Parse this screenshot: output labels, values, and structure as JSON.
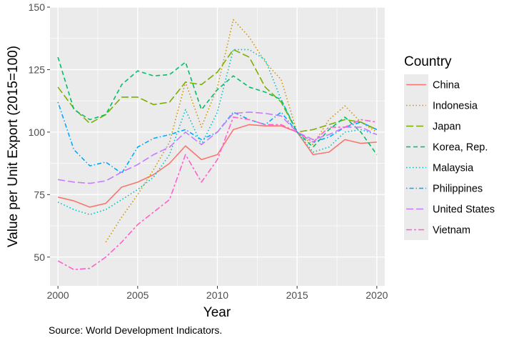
{
  "chart_data": {
    "type": "line",
    "xlabel": "Year",
    "ylabel": "Value per Unit Export (2015=100)",
    "caption": "Source: World Development Indicators.",
    "legend_title": "Country",
    "legend_position": "right",
    "grid": true,
    "xlim": [
      1999.5,
      2020.5
    ],
    "ylim": [
      38.5,
      150
    ],
    "x_ticks": [
      2000,
      2005,
      2010,
      2015,
      2020
    ],
    "y_ticks": [
      50,
      75,
      100,
      125,
      150
    ],
    "x_tick_labels": [
      "2000",
      "2005",
      "2010",
      "2015",
      "2020"
    ],
    "y_tick_labels": [
      "50",
      "75",
      "100",
      "125",
      "150"
    ],
    "series": [
      {
        "name": "China",
        "color": "#F8766D",
        "dash": "solid",
        "x": [
          2000,
          2001,
          2002,
          2003,
          2004,
          2005,
          2006,
          2007,
          2008,
          2009,
          2010,
          2011,
          2012,
          2013,
          2014,
          2015,
          2016,
          2017,
          2018,
          2019,
          2020
        ],
        "y": [
          74,
          72.5,
          70,
          71.5,
          78,
          80,
          83,
          87.5,
          94.5,
          89,
          91,
          101,
          103,
          102.5,
          102.5,
          100,
          91,
          92,
          97,
          95.5,
          96
        ]
      },
      {
        "name": "Indonesia",
        "color": "#CD9600",
        "dash": "dotted",
        "x": [
          2003,
          2004,
          2005,
          2006,
          2007,
          2008,
          2009,
          2010,
          2011,
          2012,
          2013,
          2014,
          2015,
          2016,
          2017,
          2018,
          2019,
          2020
        ],
        "y": [
          56,
          66,
          75,
          85,
          96,
          120,
          102,
          118,
          145,
          138,
          128,
          121,
          100,
          95,
          105,
          110.5,
          104,
          100
        ]
      },
      {
        "name": "Japan",
        "color": "#7CAE00",
        "dash": "longdash",
        "x": [
          2000,
          2001,
          2002,
          2003,
          2004,
          2005,
          2006,
          2007,
          2008,
          2009,
          2010,
          2011,
          2012,
          2013,
          2014,
          2015,
          2016,
          2017,
          2018,
          2019,
          2020
        ],
        "y": [
          118,
          109.5,
          103.5,
          107,
          114,
          114,
          111,
          112,
          120,
          119,
          124,
          133,
          130,
          118,
          112,
          100,
          101,
          103,
          105,
          104,
          101
        ]
      },
      {
        "name": "Korea, Rep.",
        "color": "#00BE67",
        "dash": "dashed",
        "x": [
          2000,
          2001,
          2002,
          2003,
          2004,
          2005,
          2006,
          2007,
          2008,
          2009,
          2010,
          2011,
          2012,
          2013,
          2014,
          2015,
          2016,
          2017,
          2018,
          2019,
          2020
        ],
        "y": [
          130,
          109,
          105,
          107,
          119,
          124.5,
          122.5,
          123,
          128,
          109,
          117,
          122.5,
          118,
          116,
          113,
          100,
          94,
          101,
          106,
          100,
          91
        ]
      },
      {
        "name": "Malaysia",
        "color": "#00BFC4",
        "dash": "dotted",
        "x": [
          2000,
          2001,
          2002,
          2003,
          2004,
          2005,
          2006,
          2007,
          2008,
          2009,
          2010,
          2011,
          2012,
          2013,
          2014,
          2015,
          2016,
          2017,
          2018,
          2019,
          2020
        ],
        "y": [
          72,
          69,
          67,
          69,
          73,
          77,
          82,
          91,
          109,
          95,
          108,
          133,
          133,
          129,
          113,
          100,
          92,
          94,
          100,
          101,
          99
        ]
      },
      {
        "name": "Philippines",
        "color": "#00A9FF",
        "dash": "dotdash",
        "x": [
          2000,
          2001,
          2002,
          2003,
          2004,
          2005,
          2006,
          2007,
          2008,
          2009,
          2010,
          2011,
          2012,
          2013,
          2014,
          2015,
          2016,
          2017,
          2018,
          2019,
          2020
        ],
        "y": [
          112,
          93,
          86.5,
          88,
          83.5,
          94,
          97.5,
          99,
          101,
          97,
          100,
          108,
          105,
          103,
          108,
          100,
          96,
          98,
          102,
          104,
          101
        ]
      },
      {
        "name": "United States",
        "color": "#C77CFF",
        "dash": "longdash",
        "x": [
          2000,
          2001,
          2002,
          2003,
          2004,
          2005,
          2006,
          2007,
          2008,
          2009,
          2010,
          2011,
          2012,
          2013,
          2014,
          2015,
          2016,
          2017,
          2018,
          2019,
          2020
        ],
        "y": [
          81,
          80,
          79.5,
          80.5,
          84,
          87,
          91,
          94,
          100,
          95,
          100,
          107.5,
          108,
          107.5,
          106.5,
          100,
          97,
          99,
          102,
          102,
          99
        ]
      },
      {
        "name": "Vietnam",
        "color": "#FF61CC",
        "dash": "twodash",
        "x": [
          2000,
          2001,
          2002,
          2003,
          2004,
          2005,
          2006,
          2007,
          2008,
          2009,
          2010,
          2011,
          2012,
          2013,
          2014,
          2015,
          2016,
          2017,
          2018,
          2019,
          2020
        ],
        "y": [
          48.5,
          45,
          45.5,
          50,
          56,
          63,
          68,
          73,
          91,
          80,
          89,
          106,
          105,
          103,
          103,
          100,
          96,
          102,
          102,
          105,
          104
        ]
      }
    ]
  }
}
